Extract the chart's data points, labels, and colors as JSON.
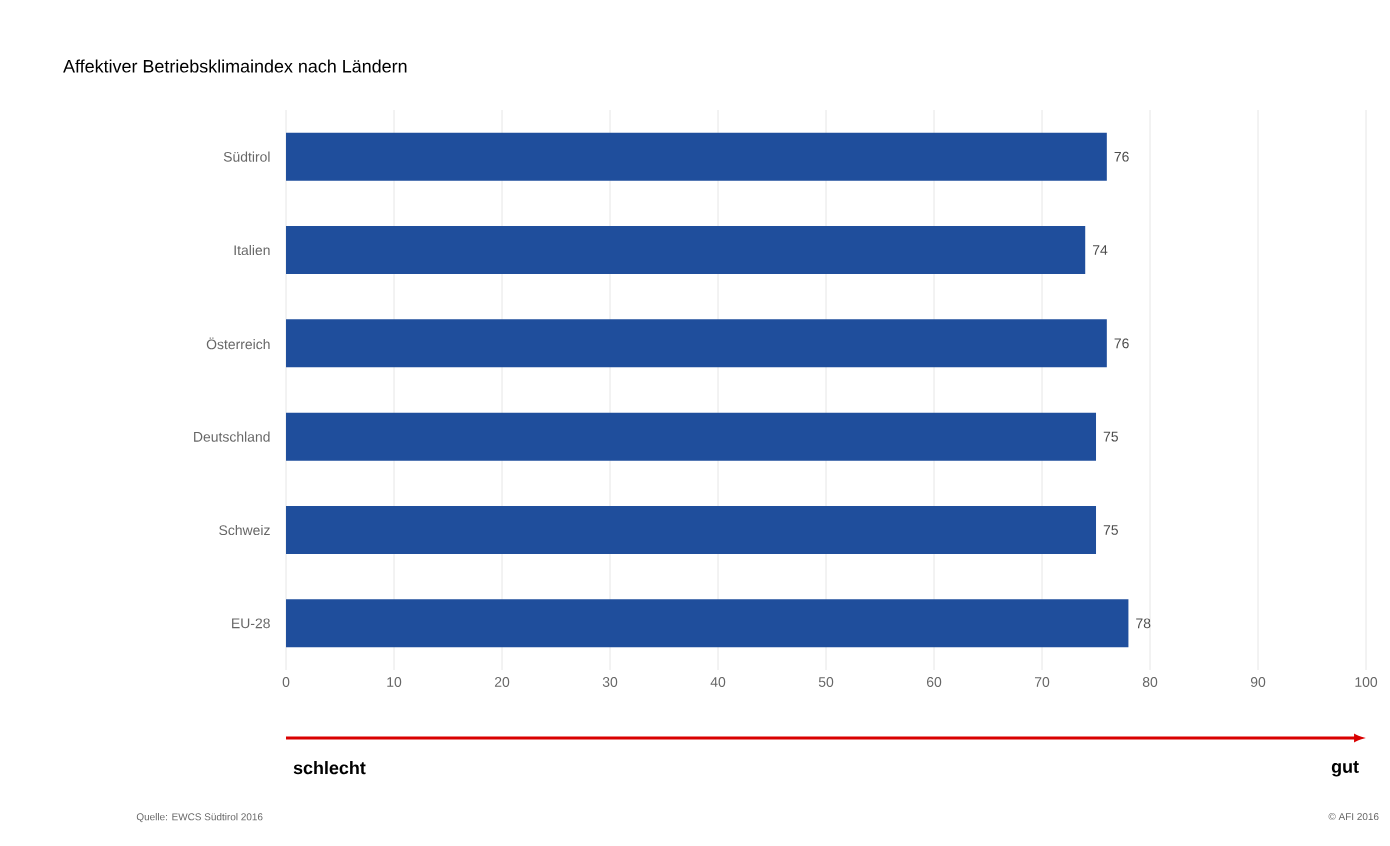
{
  "chart_data": {
    "type": "bar",
    "orientation": "horizontal",
    "title": "Affektiver Betriebsklimaindex nach Ländern",
    "categories": [
      "Südtirol",
      "Italien",
      "Österreich",
      "Deutschland",
      "Schweiz",
      "EU-28"
    ],
    "values": [
      76,
      74,
      76,
      75,
      75,
      78
    ],
    "color": "#1f4e9c",
    "xlim": [
      0,
      100
    ],
    "xticks": [
      0,
      10,
      20,
      30,
      40,
      50,
      60,
      70,
      80,
      90,
      100
    ],
    "grid": "x",
    "data_labels": true,
    "annotations": [
      "schlecht",
      "gut",
      "Quelle: EWCS Südtirol 2016",
      "© AFI 2016"
    ]
  }
}
